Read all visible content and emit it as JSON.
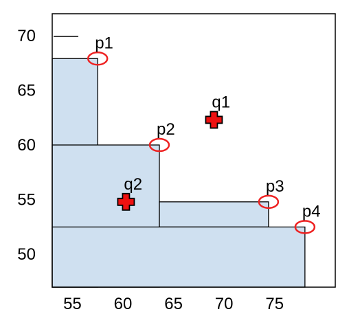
{
  "chart_data": {
    "type": "scatter",
    "title": "",
    "xlabel": "",
    "ylabel": "",
    "xlim": [
      53,
      81
    ],
    "ylim": [
      47,
      72
    ],
    "x_ticks": [
      55,
      60,
      65,
      70,
      75
    ],
    "y_ticks": [
      50,
      55,
      60,
      65,
      70
    ],
    "grid": false,
    "colors": {
      "region_fill": "#cfe0f0",
      "region_stroke": "#000000",
      "skyline_marker": "#ee2222",
      "query_marker": "#ee1111"
    },
    "dominated_regions": [
      {
        "x0": 53,
        "x1": 57.5,
        "y0": 47,
        "y1": 67.9
      },
      {
        "x0": 53,
        "x1": 63.6,
        "y0": 47,
        "y1": 60
      },
      {
        "x0": 63.6,
        "x1": 74.4,
        "y0": 52.5,
        "y1": 54.8
      },
      {
        "x0": 53,
        "x1": 78,
        "y0": 47,
        "y1": 52.5
      }
    ],
    "skyline_points": [
      {
        "label": "p1",
        "x": 57.5,
        "y": 67.9
      },
      {
        "label": "p2",
        "x": 63.6,
        "y": 60
      },
      {
        "label": "p3",
        "x": 74.4,
        "y": 54.8
      },
      {
        "label": "p4",
        "x": 78,
        "y": 52.5
      }
    ],
    "query_points": [
      {
        "label": "q1",
        "x": 69,
        "y": 62.3
      },
      {
        "label": "q2",
        "x": 60.3,
        "y": 54.8
      }
    ]
  }
}
